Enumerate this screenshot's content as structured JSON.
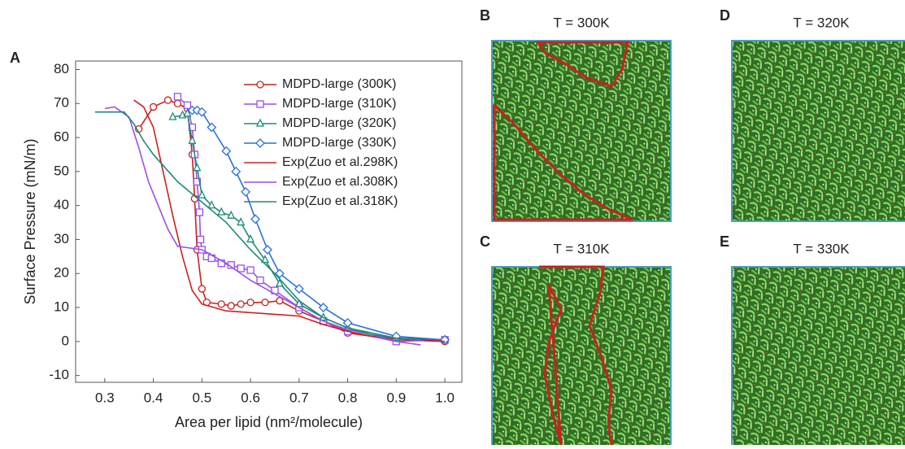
{
  "panel_label": "A",
  "chart_data": {
    "type": "line",
    "x_label": "Area per lipid (nm²/molecule)",
    "y_label": "Surface Pressure (mN/m)",
    "xlim": [
      0.24,
      1.035
    ],
    "ylim": [
      -12,
      82.5
    ],
    "xticks": [
      0.3,
      0.4,
      0.5,
      0.6,
      0.7,
      0.8,
      0.9,
      {
        "value": 1.0,
        "label": "1.0"
      }
    ],
    "yticks": [
      -10,
      0,
      10,
      20,
      30,
      40,
      50,
      60,
      70,
      80
    ],
    "legend": "top-right",
    "series": [
      {
        "name": "MDPD-large (300K)",
        "color": "#c9211e",
        "marker": "circle",
        "x": [
          0.37,
          0.4,
          0.43,
          0.45,
          0.47,
          0.48,
          0.485,
          0.49,
          0.5,
          0.51,
          0.54,
          0.56,
          0.58,
          0.6,
          0.63,
          0.66,
          0.7,
          0.75,
          0.8,
          0.9,
          1.0
        ],
        "values": [
          62.5,
          69,
          71,
          70,
          68.5,
          55,
          42,
          27,
          15.5,
          11.5,
          11,
          10.5,
          11,
          11.5,
          11.5,
          12,
          9,
          6,
          2.5,
          0.5,
          0
        ]
      },
      {
        "name": "MDPD-large (310K)",
        "color": "#9a4fe8",
        "marker": "square",
        "x": [
          0.45,
          0.47,
          0.48,
          0.485,
          0.49,
          0.495,
          0.497,
          0.5,
          0.51,
          0.52,
          0.54,
          0.56,
          0.58,
          0.6,
          0.62,
          0.65,
          0.7,
          0.75,
          0.8,
          0.9,
          1.0
        ],
        "values": [
          72,
          69.5,
          63,
          55,
          47,
          38,
          30,
          27,
          25,
          24.5,
          23,
          22.5,
          21.5,
          21,
          18,
          15,
          10,
          6,
          3,
          0,
          0.5
        ]
      },
      {
        "name": "MDPD-large (320K)",
        "color": "#1f8a78",
        "marker": "triangle",
        "x": [
          0.44,
          0.46,
          0.47,
          0.48,
          0.49,
          0.5,
          0.52,
          0.54,
          0.56,
          0.58,
          0.6,
          0.63,
          0.66,
          0.7,
          0.75,
          0.8,
          0.9,
          1.0
        ],
        "values": [
          66,
          66.5,
          67,
          59,
          51,
          43,
          40,
          38,
          37,
          35,
          30,
          24,
          17,
          11,
          7,
          4,
          1,
          0.5
        ]
      },
      {
        "name": "MDPD-large (330K)",
        "color": "#2a6fe0",
        "marker": "diamond",
        "x": [
          0.48,
          0.49,
          0.5,
          0.52,
          0.55,
          0.57,
          0.59,
          0.61,
          0.635,
          0.66,
          0.7,
          0.75,
          0.8,
          0.9,
          1.0
        ],
        "values": [
          68,
          68,
          67.5,
          63,
          56,
          50,
          44,
          36,
          27,
          20,
          15.5,
          10,
          5.5,
          1.5,
          0.5
        ]
      },
      {
        "name": "Exp(Zuo et al.298K)",
        "color": "#c9211e",
        "x": [
          0.36,
          0.38,
          0.4,
          0.42,
          0.44,
          0.46,
          0.48,
          0.5,
          0.55,
          0.6,
          0.65,
          0.7,
          0.75,
          0.8,
          0.85,
          0.9,
          0.95,
          1.0
        ],
        "values": [
          71,
          69,
          63,
          50,
          37,
          25,
          15,
          11,
          9,
          8.5,
          8,
          7.5,
          5,
          3,
          1.5,
          1,
          0.5,
          0
        ]
      },
      {
        "name": "Exp(Zuo et al.308K)",
        "color": "#9a4fe8",
        "x": [
          0.3,
          0.32,
          0.35,
          0.37,
          0.39,
          0.41,
          0.43,
          0.45,
          0.5,
          0.55,
          0.6,
          0.65,
          0.7,
          0.75,
          0.8,
          0.85,
          0.9,
          0.95
        ],
        "values": [
          68.5,
          69,
          66,
          57,
          47,
          40,
          33,
          28,
          27,
          23,
          18,
          14,
          10,
          6,
          3.5,
          2,
          0,
          -1
        ]
      },
      {
        "name": "Exp(Zuo et al.318K)",
        "color": "#1f8a78",
        "x": [
          0.28,
          0.3,
          0.34,
          0.36,
          0.38,
          0.4,
          0.45,
          0.5,
          0.55,
          0.6,
          0.65,
          0.7,
          0.75,
          0.8,
          0.85,
          0.9,
          0.95
        ],
        "values": [
          67.5,
          67.5,
          67.5,
          64,
          59,
          55,
          47,
          41,
          35,
          27,
          20,
          12,
          7,
          4,
          2,
          1,
          0.5
        ]
      }
    ]
  },
  "panels": [
    {
      "label": "B",
      "title": "T = 300K"
    },
    {
      "label": "C",
      "title": "T = 310K"
    },
    {
      "label": "D",
      "title": "T = 320K"
    },
    {
      "label": "E",
      "title": "T = 330K"
    }
  ]
}
